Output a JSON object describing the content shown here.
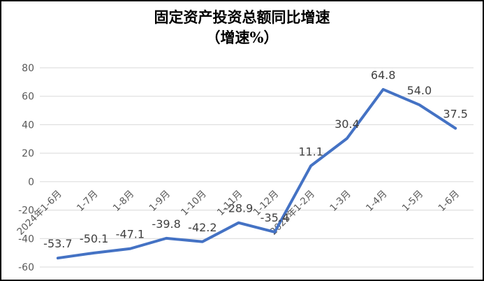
{
  "chart_data": {
    "type": "line",
    "title": "固定资产投资总额同比增速",
    "subtitle": "（增速%）",
    "categories": [
      "2024年1-6月",
      "1-7月",
      "1-8月",
      "1-9月",
      "1-10月",
      "1-11月",
      "1-12月",
      "2025年1-2月",
      "1-3月",
      "1-4月",
      "1-5月",
      "1-6月"
    ],
    "values": [
      -53.7,
      -50.1,
      -47.1,
      -39.8,
      -42.2,
      -28.9,
      -35.4,
      11.1,
      30.4,
      64.8,
      54.0,
      37.5
    ],
    "data_labels": [
      "-53.7",
      "-50.1",
      "-47.1",
      "-39.8",
      "-42.2",
      "-28.9",
      "-35.4",
      "11.1",
      "30.4",
      "64.8",
      "54.0",
      "37.5"
    ],
    "y_ticks": [
      80,
      60,
      40,
      20,
      0,
      -20,
      -40,
      -60
    ],
    "ylim": [
      -60,
      80
    ],
    "grid": true,
    "legend": "none",
    "xlabel": "",
    "ylabel": "",
    "colors": {
      "line": "#4472C4",
      "gridline": "#D9D9D9",
      "tick_label": "#595959",
      "data_label": "#404040",
      "title": "#000000",
      "background": "#ffffff",
      "frame_border": "#000000"
    }
  }
}
